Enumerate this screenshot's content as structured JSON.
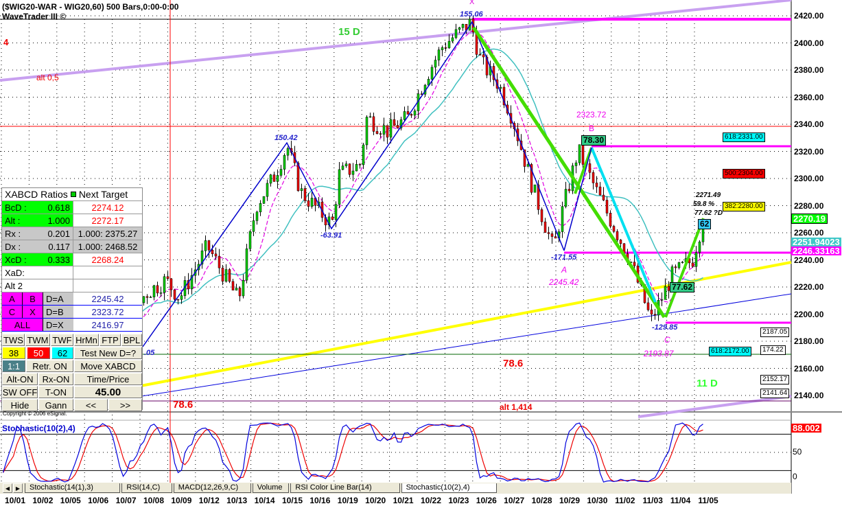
{
  "header": {
    "title": "($WIG20-WAR - WIG20,60) 500 Bars,0:00-0:00",
    "subtitle": "WaveTrader III ©",
    "copyright": "Copyright © 2006 eSignal."
  },
  "chart_data": [
    {
      "type": "candlestick",
      "title": "($WIG20-WAR - WIG20,60) 500 Bars,0:00-0:00",
      "ylim": [
        2128,
        2428
      ],
      "yticks": [
        2420,
        2400,
        2380,
        2360,
        2340,
        2320,
        2300,
        2280,
        2260,
        2240,
        2220,
        2200,
        2180,
        2160,
        2140
      ],
      "ytick_labels": [
        "2420.00",
        "2400.00",
        "2380.00",
        "2360.00",
        "2340.00",
        "2320.00",
        "2300.00",
        "2280.00",
        "2260.00",
        "2240.00",
        "2220.00",
        "2200.00",
        "2180.00",
        "2160.00",
        "2140.00"
      ],
      "dates": [
        "10/01",
        "10/02",
        "10/05",
        "10/06",
        "10/07",
        "10/08",
        "10/09",
        "10/12",
        "10/13",
        "10/14",
        "10/15",
        "10/16",
        "10/19",
        "10/20",
        "10/21",
        "10/22",
        "10/23",
        "10/26",
        "10/27",
        "10/28",
        "10/29",
        "10/30",
        "11/02",
        "11/03",
        "11/04",
        "11/05"
      ],
      "price_path": [
        [
          "10/01",
          9,
          2230
        ],
        [
          "10/01",
          14,
          2250
        ],
        [
          "10/02",
          12,
          2195
        ],
        [
          "10/05",
          12,
          2150
        ],
        [
          "10/06",
          10,
          2205
        ],
        [
          "10/06",
          15,
          2232
        ],
        [
          "10/07",
          11,
          2182
        ],
        [
          "10/08",
          10,
          2215
        ],
        [
          "10/08",
          16,
          2225
        ],
        [
          "10/09",
          12,
          2212
        ],
        [
          "10/12",
          12,
          2250
        ],
        [
          "10/13",
          13,
          2210
        ],
        [
          "10/14",
          10,
          2280
        ],
        [
          "10/14",
          15,
          2300
        ],
        [
          "10/15",
          11,
          2324
        ],
        [
          "10/15",
          15,
          2290
        ],
        [
          "10/16",
          16,
          2266
        ],
        [
          "10/19",
          10,
          2303
        ],
        [
          "10/19",
          16,
          2310
        ],
        [
          "10/20",
          10,
          2345
        ],
        [
          "10/20",
          16,
          2335
        ],
        [
          "10/21",
          14,
          2345
        ],
        [
          "10/22",
          11,
          2375
        ],
        [
          "10/22",
          16,
          2398
        ],
        [
          "10/23",
          16,
          2415
        ],
        [
          "10/26",
          11,
          2385
        ],
        [
          "10/26",
          16,
          2370
        ],
        [
          "10/27",
          12,
          2345
        ],
        [
          "10/28",
          10,
          2292
        ],
        [
          "10/28",
          16,
          2247
        ],
        [
          "10/29",
          9,
          2262
        ],
        [
          "10/29",
          15,
          2321
        ],
        [
          "10/30",
          12,
          2292
        ],
        [
          "11/02",
          14,
          2240
        ],
        [
          "11/03",
          12,
          2195
        ],
        [
          "11/04",
          10,
          2228
        ],
        [
          "11/04",
          16,
          2240
        ],
        [
          "11/05",
          11,
          2270
        ]
      ],
      "last_price": "2270.19",
      "ma_slow_value": "2251.94023",
      "ma_fast_value": "2246.33163",
      "colors": {
        "up": "#00cc00",
        "down": "#ee0000",
        "ma_slow": "#40c0c0",
        "ma_fast": "#e000e0"
      },
      "annotations": {
        "wave4": "4",
        "alt05": "alt 0,5",
        "d15": "15 D",
        "x": "X",
        "x_val": "155.06",
        "p150": "150.42",
        "m6391": "-63.91",
        "b_price": "2323.72",
        "b": "B",
        "b_box": "78.30",
        "m17155": "-171.55",
        "a": "A",
        "a_price": "2245.42",
        "c_box": "77.62",
        "m12985": "-129.85",
        "c": "C",
        "c_price": "2193.87",
        "r786a": "78.6",
        "r786b": "78.6",
        "alt1414": "alt 1,414",
        "d11": "11 D",
        "d_box": "62",
        "d_price": "2271.49",
        "d_pct": "59.8 %",
        "d_ratio": "77.62 ?D",
        "left_val": ".05"
      },
      "targets": [
        {
          "label": "618:2331.00",
          "color": "#00ffff"
        },
        {
          "label": "500:2304.00",
          "color": "#ff0000"
        },
        {
          "label": "382:2280.00",
          "color": "#ffff00"
        },
        {
          "label": "618:2172.00",
          "color": "#00ffff"
        }
      ],
      "level_boxes": [
        "2187.05",
        "174.22",
        "2152.17",
        "2141.64"
      ]
    },
    {
      "type": "line",
      "title": "Stochastic(10(2),4)",
      "ylim": [
        0,
        100
      ],
      "yticks": [
        "50",
        "0"
      ],
      "levels": [
        80,
        20
      ],
      "current": "88.002"
    }
  ],
  "panel": {
    "header": "XABCD Ratios",
    "header2": "Next Target",
    "rows": [
      {
        "k": "BcD :",
        "v": "0.618",
        "t": "2274.12"
      },
      {
        "k": "Alt  :",
        "v": "1.000",
        "t": "2272.17"
      },
      {
        "k": "Rx   :",
        "v": "0.201",
        "t": "1.000: 2375.27"
      },
      {
        "k": "Dx   :",
        "v": "0.117",
        "t": "1.000: 2468.52"
      },
      {
        "k": "XcD :",
        "v": "0.333",
        "t": "2268.24"
      },
      {
        "k": "XaD:",
        "v": "",
        "t": ""
      },
      {
        "k": "Alt 2",
        "v": "",
        "t": ""
      }
    ],
    "dpoints": [
      {
        "a": "A",
        "b": "B",
        "k": "D=A",
        "v": "2245.42"
      },
      {
        "a": "C",
        "b": "X",
        "k": "D=B",
        "v": "2323.72"
      },
      {
        "a": "ALL",
        "b": "",
        "k": "D=X",
        "v": "2416.97"
      }
    ],
    "buttons": {
      "tws": "TWS",
      "twm": "TWM",
      "twf": "TWF",
      "hrmn": "HrMn",
      "ftp": "FTP",
      "bpl": "BPL",
      "r38": "38",
      "r50": "50",
      "r62": "62",
      "test": "Test New D=?",
      "one": "1:1",
      "retr": "Retr. ON",
      "move": "Move XABCD",
      "alt": "Alt-ON",
      "rx": "Rx-ON",
      "time": "Time/Price",
      "sw": "SW OFF",
      "ton": "T-ON",
      "val": "45.00",
      "hide": "Hide",
      "gann": "Gann",
      "prev": "<<",
      "next": ">>"
    }
  },
  "tabs": [
    "Stochastic(14(1),3)",
    "RSI(14,C)",
    "MACD(12,26,9,C)",
    "Volume",
    "RSI Color Line Bar(14)",
    "Stochastic(10(2),4)"
  ],
  "active_tab": 5
}
